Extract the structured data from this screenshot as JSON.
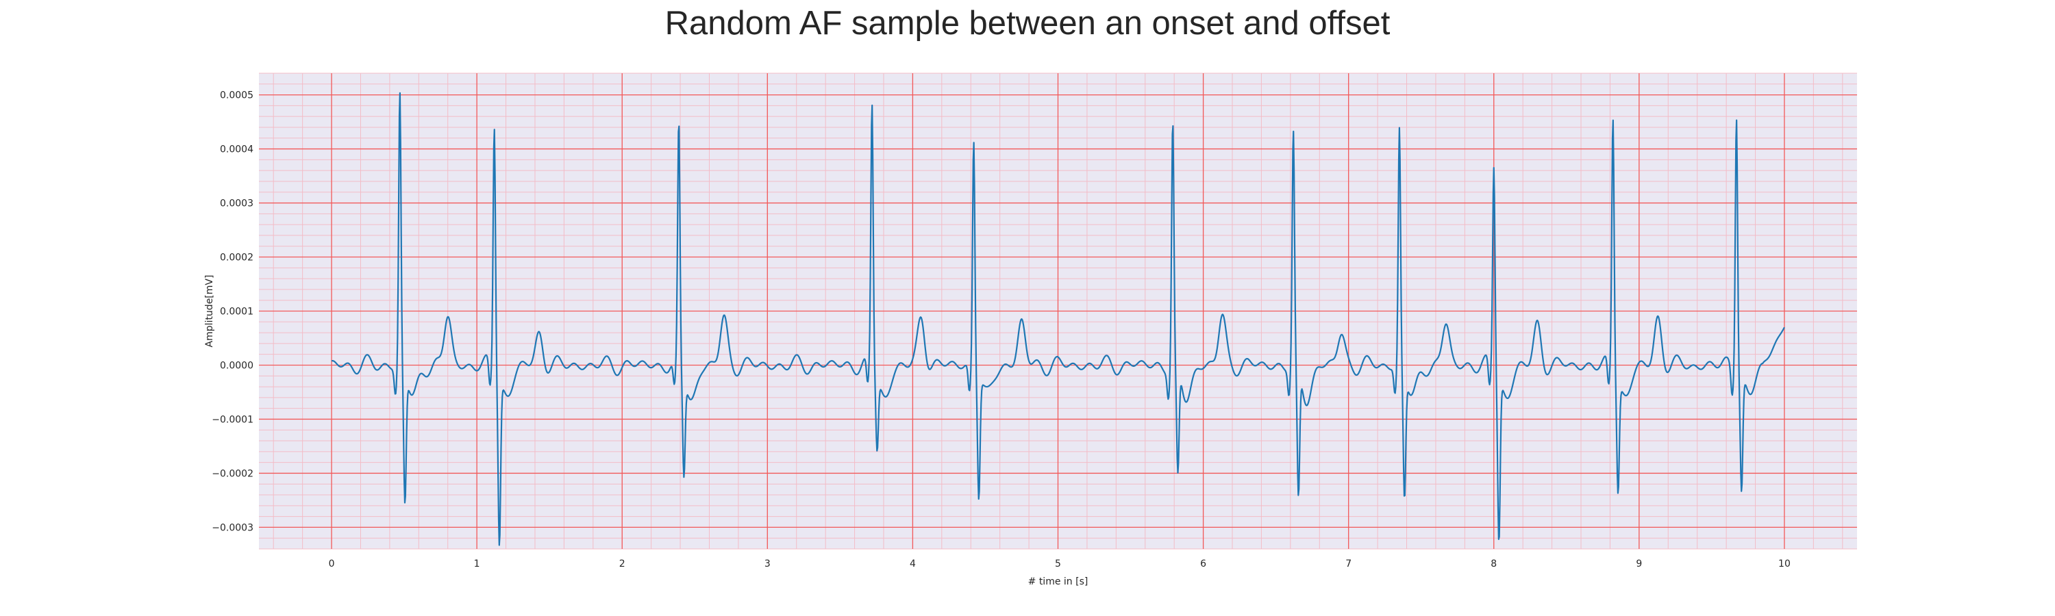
{
  "colors": {
    "plot_background": "#eae8f3",
    "major_grid": "#f25a5a",
    "minor_grid": "#f3bcc7",
    "line": "#1f77b4"
  },
  "chart_data": {
    "type": "line",
    "title": "Random AF sample between an onset and offset",
    "xlabel": "# time in [s]",
    "ylabel": "Amplitude[mV]",
    "xlim": [
      -0.5,
      10.5
    ],
    "ylim": [
      -0.00034,
      0.00054
    ],
    "xticks": [
      0,
      1,
      2,
      3,
      4,
      5,
      6,
      7,
      8,
      9,
      10
    ],
    "xtick_labels": [
      "0",
      "1",
      "2",
      "3",
      "4",
      "5",
      "6",
      "7",
      "8",
      "9",
      "10"
    ],
    "yticks": [
      -0.0003,
      -0.0002,
      -0.0001,
      0.0,
      0.0001,
      0.0002,
      0.0003,
      0.0004,
      0.0005
    ],
    "ytick_labels": [
      "−0.0003",
      "−0.0002",
      "−0.0001",
      "0.0000",
      "0.0001",
      "0.0002",
      "0.0003",
      "0.0004",
      "0.0005"
    ],
    "grid": true,
    "minor_grid": true,
    "series": [
      {
        "r_peaks": [
          {
            "t": 0.47,
            "r": 0.000505,
            "s": -0.00024
          },
          {
            "t": 1.12,
            "r": 0.00045,
            "s": -0.000305
          },
          {
            "t": 2.39,
            "r": 0.000438,
            "s": -0.000185
          },
          {
            "t": 3.72,
            "r": 0.000482,
            "s": -0.000135
          },
          {
            "t": 4.42,
            "r": 0.000425,
            "s": -0.000222
          },
          {
            "t": 5.79,
            "r": 0.000447,
            "s": -0.0002
          },
          {
            "t": 6.62,
            "r": 0.000425,
            "s": -0.000242
          },
          {
            "t": 7.35,
            "r": 0.000437,
            "s": -0.000228
          },
          {
            "t": 8.0,
            "r": 0.000373,
            "s": -0.000302
          },
          {
            "t": 8.82,
            "r": 0.000465,
            "s": -0.000205
          },
          {
            "t": 9.67,
            "r": 0.000478,
            "s": -0.000212
          }
        ],
        "t_waves": [
          {
            "t": 0.8,
            "a": 9e-05
          },
          {
            "t": 1.43,
            "a": 5.7e-05
          },
          {
            "t": 2.7,
            "a": 8.5e-05
          },
          {
            "t": 4.06,
            "a": 8.7e-05
          },
          {
            "t": 4.75,
            "a": 7.8e-05
          },
          {
            "t": 6.13,
            "a": 8.9e-05
          },
          {
            "t": 6.95,
            "a": 5.8e-05
          },
          {
            "t": 7.67,
            "a": 7.5e-05
          },
          {
            "t": 8.3,
            "a": 7.2e-05
          },
          {
            "t": 9.13,
            "a": 8.5e-05
          }
        ],
        "t_start": 0.0,
        "t_end": 10.0,
        "end_value": 7e-05
      }
    ]
  }
}
